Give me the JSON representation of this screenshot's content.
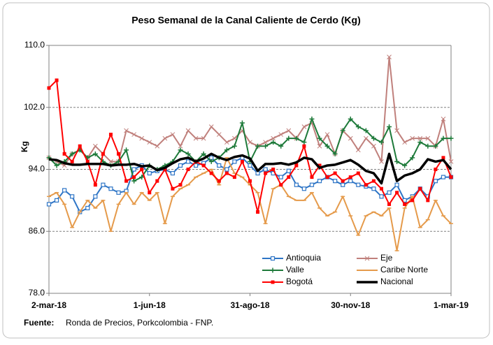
{
  "chart_data": {
    "type": "line",
    "title": "Peso Semanal de la Canal Caliente de Cerdo (Kg)",
    "y_label": "Kg",
    "source_label": "Fuente:",
    "source": "Ronda de Precios, Porkcolombia  - FNP.",
    "categories": [
      "2-mar-18",
      null,
      null,
      null,
      null,
      null,
      null,
      null,
      null,
      null,
      null,
      null,
      null,
      "1-jun-18",
      null,
      null,
      null,
      null,
      null,
      null,
      null,
      null,
      null,
      null,
      null,
      null,
      "31-ago-18",
      null,
      null,
      null,
      null,
      null,
      null,
      null,
      null,
      null,
      null,
      null,
      null,
      "30-nov-18",
      null,
      null,
      null,
      null,
      null,
      null,
      null,
      null,
      null,
      null,
      null,
      null,
      "1-mar-19"
    ],
    "ylim": [
      78,
      110
    ],
    "yticks": [
      {
        "value": 78,
        "label": "78.0"
      },
      {
        "value": 86,
        "label": "86.0"
      },
      {
        "value": 94,
        "label": "94.0"
      },
      {
        "value": 102,
        "label": "102.0"
      },
      {
        "value": 110,
        "label": "110.0"
      }
    ],
    "grid": true,
    "series": [
      {
        "name": "Antioquia",
        "color": "#2e75c6",
        "marker": "square",
        "values": [
          89.5,
          90,
          91.3,
          90.5,
          88.5,
          89,
          90.5,
          92,
          91.5,
          91,
          91.2,
          94,
          94.5,
          93.5,
          93.8,
          94,
          93.5,
          94.5,
          95,
          94.5,
          94.8,
          95.5,
          94.5,
          94,
          95,
          95.5,
          94.5,
          93.5,
          94,
          93.5,
          93,
          93.8,
          92,
          91.5,
          92,
          92.5,
          93,
          92.5,
          92,
          92.5,
          92,
          91.8,
          91.5,
          90.5,
          91,
          92,
          90,
          90.5,
          91.5,
          90.5,
          92.5,
          93,
          93
        ]
      },
      {
        "name": "Eje",
        "color": "#c0807c",
        "marker": "x",
        "values": [
          95.5,
          95,
          94.5,
          96,
          96.5,
          95.5,
          97,
          96,
          95,
          95,
          99,
          98.5,
          98,
          97.5,
          97,
          98,
          98.5,
          97,
          99,
          98,
          98,
          99.5,
          98.5,
          97.5,
          98,
          99,
          97.5,
          97,
          97.5,
          98,
          98.5,
          99,
          98,
          99.5,
          100,
          97,
          98.5,
          96,
          99,
          98,
          96.5,
          98,
          97,
          95,
          108.5,
          99,
          97.5,
          98,
          98,
          98,
          97,
          100.5,
          95
        ]
      },
      {
        "name": "Valle",
        "color": "#1e7a3a",
        "marker": "plus",
        "values": [
          95.5,
          94.5,
          95,
          96,
          96.5,
          95.5,
          96,
          95,
          94.5,
          95,
          96.5,
          92.5,
          93,
          94.5,
          94,
          94.5,
          95,
          96.5,
          96,
          95,
          96,
          95,
          95.5,
          96.5,
          97,
          100,
          95,
          97,
          97,
          97.5,
          97,
          98,
          98,
          97.5,
          100.5,
          98,
          97,
          96,
          99,
          100.5,
          99.5,
          99,
          98,
          97.5,
          99.5,
          95,
          94.5,
          95.5,
          97.5,
          97,
          97,
          98,
          98
        ]
      },
      {
        "name": "Caribe Norte",
        "color": "#e59a4a",
        "marker": "dash",
        "values": [
          90.5,
          91,
          89.5,
          86.5,
          88.5,
          90,
          89,
          90,
          86,
          89.5,
          91,
          89.5,
          91,
          90,
          91,
          87,
          90.5,
          91.5,
          92,
          93,
          93.5,
          94,
          92,
          95.5,
          93.5,
          93,
          92,
          91,
          87,
          91.5,
          92,
          90.5,
          90,
          90,
          91,
          89,
          88,
          88.5,
          90.5,
          88,
          85.5,
          88,
          88.5,
          88,
          89,
          83.5,
          89,
          90.5,
          86.5,
          87.5,
          90,
          88,
          87
        ]
      },
      {
        "name": "Bogotá",
        "color": "#ff0000",
        "marker": "dot",
        "values": [
          104.5,
          105.5,
          96,
          95,
          97,
          95,
          92,
          96,
          98.5,
          96,
          92.5,
          93,
          94,
          91,
          92.5,
          94,
          91.5,
          92,
          94,
          95,
          94.5,
          93.5,
          92.5,
          93.5,
          93,
          95,
          92.5,
          88.5,
          93.5,
          94,
          92,
          93,
          94.5,
          97,
          93,
          94.5,
          93,
          93.5,
          92.5,
          93,
          93.5,
          92,
          92.5,
          91.5,
          89.5,
          91,
          89.5,
          90,
          91.5,
          90,
          94,
          95.5,
          93
        ]
      },
      {
        "name": "Nacional",
        "color": "#000000",
        "marker": "none",
        "width": 3.5,
        "values": [
          95.3,
          95.2,
          94.8,
          94.6,
          94.6,
          94.7,
          94.7,
          94.7,
          94.5,
          94.6,
          94.6,
          94.7,
          94.4,
          94.5,
          93.9,
          94.2,
          94.8,
          95.3,
          95.5,
          95,
          95.4,
          96,
          95.5,
          95.2,
          95.6,
          95.8,
          95.4,
          93.8,
          94.7,
          94.7,
          94.8,
          94.6,
          94.9,
          95.5,
          95.3,
          94.2,
          94.5,
          94.6,
          94.9,
          95.2,
          94.6,
          93.8,
          93.5,
          92.2,
          96,
          92.5,
          93.2,
          93.5,
          94,
          95.3,
          95,
          95.2,
          94
        ]
      }
    ]
  }
}
